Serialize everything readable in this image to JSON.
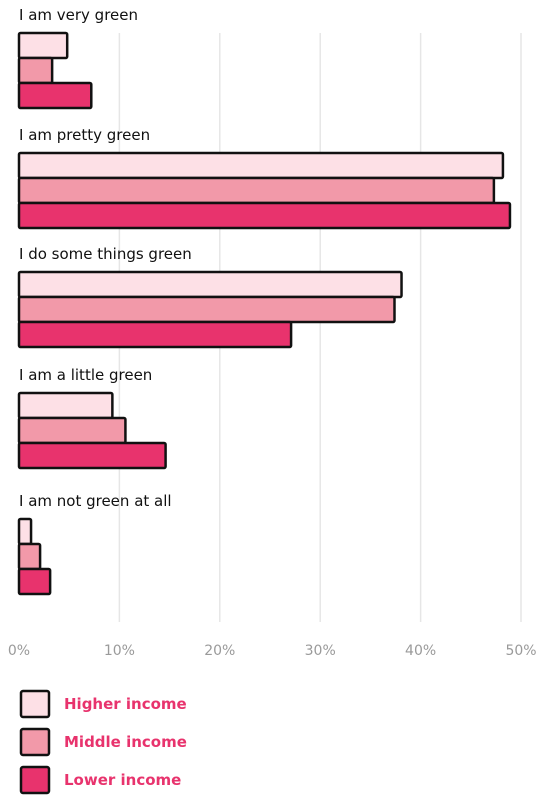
{
  "chart_data": {
    "type": "bar",
    "orientation": "horizontal",
    "categories": [
      "I am very green",
      "I am pretty green",
      "I do some things green",
      "I am a little green",
      "I am not green at all"
    ],
    "series": [
      {
        "name": "Higher income",
        "color": "#fde0e6",
        "values": [
          4.8,
          48.2,
          38.1,
          9.3,
          1.2
        ]
      },
      {
        "name": "Middle income",
        "color": "#f299a9",
        "values": [
          3.3,
          47.3,
          37.4,
          10.6,
          2.1
        ]
      },
      {
        "name": "Lower income",
        "color": "#e8336d",
        "values": [
          7.2,
          48.9,
          27.1,
          14.6,
          3.1
        ]
      }
    ],
    "xlim": [
      0,
      50
    ],
    "xticks": [
      "0%",
      "10%",
      "20%",
      "30%",
      "40%",
      "50%"
    ],
    "grid": true,
    "legend_position": "bottom-left",
    "legend_text_color": "#e8336d"
  }
}
